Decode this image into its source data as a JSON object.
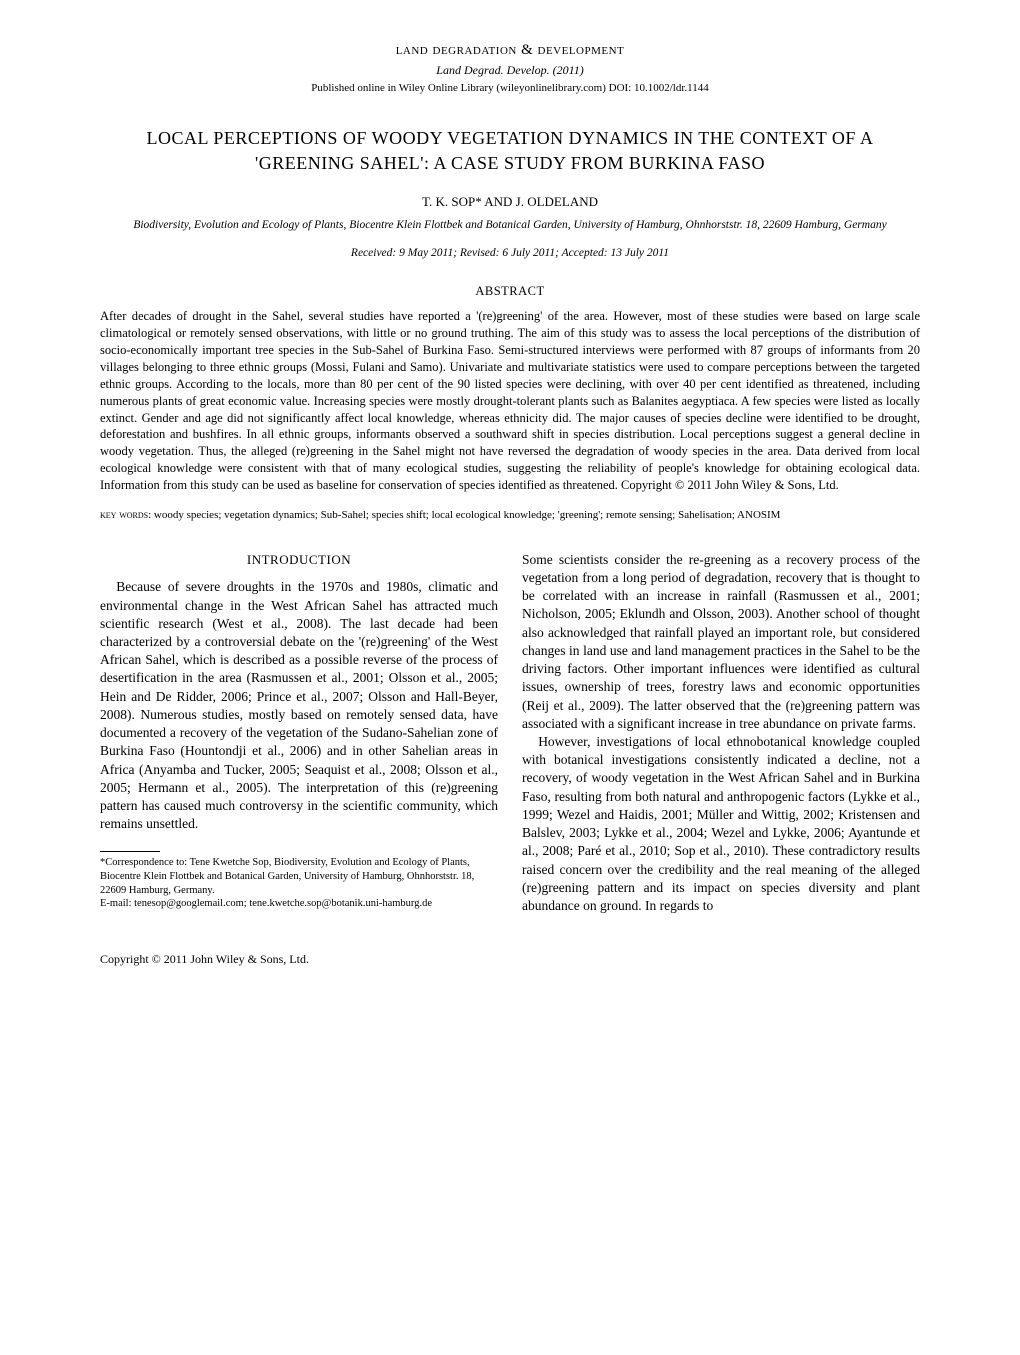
{
  "journal": {
    "name": "land degradation & development",
    "sub": "Land Degrad. Develop. (2011)",
    "pub": "Published online in Wiley Online Library (wileyonlinelibrary.com) DOI: 10.1002/ldr.1144"
  },
  "title": "LOCAL PERCEPTIONS OF WOODY VEGETATION DYNAMICS IN THE CONTEXT OF A 'GREENING SAHEL': A CASE STUDY FROM BURKINA FASO",
  "authors": "T. K. SOP* AND J. OLDELAND",
  "affiliation": "Biodiversity, Evolution and Ecology of Plants, Biocentre Klein Flottbek and Botanical Garden, University of Hamburg, Ohnhorststr. 18, 22609 Hamburg, Germany",
  "dates": "Received: 9 May 2011;   Revised: 6 July 2011;   Accepted: 13 July 2011",
  "abstract": {
    "heading": "ABSTRACT",
    "body": "After decades of drought in the Sahel, several studies have reported a '(re)greening' of the area. However, most of these studies were based on large scale climatological or remotely sensed observations, with little or no ground truthing. The aim of this study was to assess the local perceptions of the distribution of socio-economically important tree species in the Sub-Sahel of Burkina Faso. Semi-structured interviews were performed with 87 groups of informants from 20 villages belonging to three ethnic groups (Mossi, Fulani and Samo). Univariate and multivariate statistics were used to compare perceptions between the targeted ethnic groups. According to the locals, more than 80 per cent of the 90 listed species were declining, with over 40 per cent identified as threatened, including numerous plants of great economic value. Increasing species were mostly drought-tolerant plants such as Balanites aegyptiaca. A few species were listed as locally extinct. Gender and age did not significantly affect local knowledge, whereas ethnicity did. The major causes of species decline were identified to be drought, deforestation and bushfires. In all ethnic groups, informants observed a southward shift in species distribution. Local perceptions suggest a general decline in woody vegetation. Thus, the alleged (re)greening in the Sahel might not have reversed the degradation of woody species in the area. Data derived from local ecological knowledge were consistent with that of many ecological studies, suggesting the reliability of people's knowledge for obtaining ecological data. Information from this study can be used as baseline for conservation of species identified as threatened. Copyright © 2011 John Wiley & Sons, Ltd."
  },
  "keywords": {
    "label": "key words:",
    "text": "   woody species; vegetation dynamics; Sub-Sahel; species shift; local ecological knowledge; 'greening'; remote sensing; Sahelisation; ANOSIM"
  },
  "intro_heading": "INTRODUCTION",
  "col_left": {
    "p1": "Because of severe droughts in the 1970s and 1980s, climatic and environmental change in the West African Sahel has attracted much scientific research (West et al., 2008). The last decade had been characterized by a controversial debate on the '(re)greening' of the West African Sahel, which is described as a possible reverse of the process of desertification in the area (Rasmussen et al., 2001; Olsson et al., 2005; Hein and De Ridder, 2006; Prince et al., 2007; Olsson and Hall-Beyer, 2008). Numerous studies, mostly based on remotely sensed data, have documented a recovery of the vegetation of the Sudano-Sahelian zone of Burkina Faso (Hountondji et al., 2006) and in other Sahelian areas in Africa (Anyamba and Tucker, 2005; Seaquist et al., 2008; Olsson et al., 2005; Hermann et al., 2005). The interpretation of this (re)greening pattern has caused much controversy in the scientific community, which remains unsettled."
  },
  "col_right": {
    "p1": "Some scientists consider the re-greening as a recovery process of the vegetation from a long period of degradation, recovery that is thought to be correlated with an increase in rainfall (Rasmussen et al., 2001; Nicholson, 2005; Eklundh and Olsson, 2003). Another school of thought also acknowledged that rainfall played an important role, but considered changes in land use and land management practices in the Sahel to be the driving factors. Other important influences were identified as cultural issues, ownership of trees, forestry laws and economic opportunities (Reij et al., 2009). The latter observed that the (re)greening pattern was associated with a significant increase in tree abundance on private farms.",
    "p2": "However, investigations of local ethnobotanical knowledge coupled with botanical investigations consistently indicated a decline, not a recovery, of woody vegetation in the West African Sahel and in Burkina Faso, resulting from both natural and anthropogenic factors (Lykke et al., 1999; Wezel and Haidis, 2001; Müller and Wittig, 2002; Kristensen and Balslev, 2003; Lykke et al., 2004; Wezel and Lykke, 2006; Ayantunde et al., 2008; Paré et al., 2010; Sop et al., 2010). These contradictory results raised concern over the credibility and the real meaning of the alleged (re)greening pattern and its impact on species diversity and plant abundance on ground. In regards to"
  },
  "footnote": {
    "line1": "*Correspondence to: Tene Kwetche Sop, Biodiversity, Evolution and Ecology of Plants, Biocentre Klein Flottbek and Botanical Garden, University of Hamburg, Ohnhorststr. 18, 22609 Hamburg, Germany.",
    "line2": "E-mail: tenesop@googlemail.com; tene.kwetche.sop@botanik.uni-hamburg.de"
  },
  "footer": {
    "left": "Copyright © 2011 John Wiley & Sons, Ltd."
  }
}
